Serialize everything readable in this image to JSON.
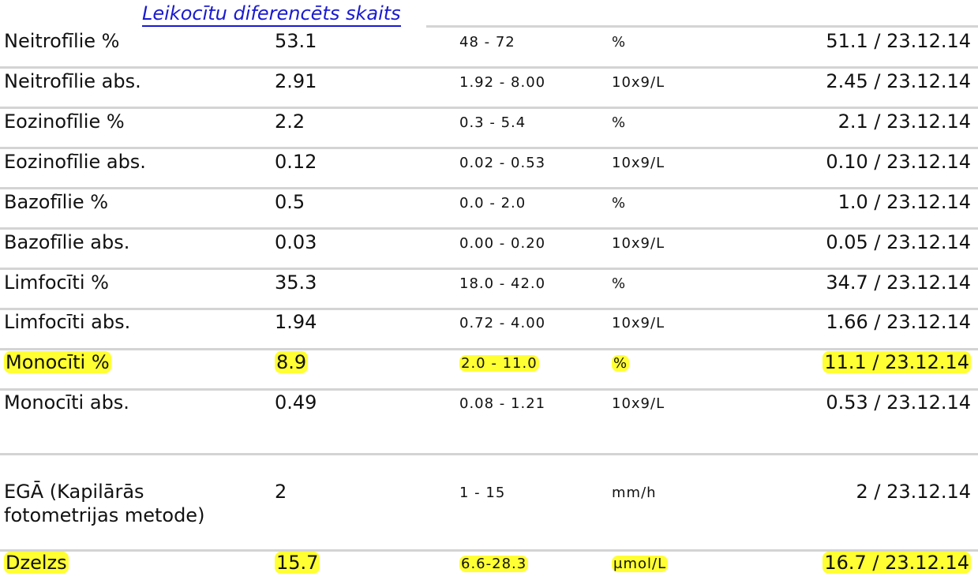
{
  "section_title": "Leikocītu diferencēts skaits",
  "rows": [
    {
      "name": "Neitrofīlie %",
      "value": "53.1",
      "range": "48 - 72",
      "unit": "%",
      "previous": "51.1 / 23.12.14",
      "highlight": false
    },
    {
      "name": "Neitrofīlie abs.",
      "value": "2.91",
      "range": "1.92 - 8.00",
      "unit": "10x9/L",
      "previous": "2.45 / 23.12.14",
      "highlight": false
    },
    {
      "name": "Eozinofīlie %",
      "value": "2.2",
      "range": "0.3 - 5.4",
      "unit": "%",
      "previous": "2.1 / 23.12.14",
      "highlight": false
    },
    {
      "name": "Eozinofīlie abs.",
      "value": "0.12",
      "range": "0.02 - 0.53",
      "unit": "10x9/L",
      "previous": "0.10 / 23.12.14",
      "highlight": false
    },
    {
      "name": "Bazofīlie %",
      "value": "0.5",
      "range": "0.0 - 2.0",
      "unit": "%",
      "previous": "1.0 / 23.12.14",
      "highlight": false
    },
    {
      "name": "Bazofīlie abs.",
      "value": "0.03",
      "range": "0.00 - 0.20",
      "unit": "10x9/L",
      "previous": "0.05 / 23.12.14",
      "highlight": false
    },
    {
      "name": "Limfocīti %",
      "value": "35.3",
      "range": "18.0 - 42.0",
      "unit": "%",
      "previous": "34.7 / 23.12.14",
      "highlight": false
    },
    {
      "name": "Limfocīti abs.",
      "value": "1.94",
      "range": "0.72 - 4.00",
      "unit": "10x9/L",
      "previous": "1.66 / 23.12.14",
      "highlight": false
    },
    {
      "name": "Monocīti %",
      "value": "8.9",
      "range": "2.0 - 11.0",
      "unit": "%",
      "previous": "11.1 / 23.12.14",
      "highlight": true
    },
    {
      "name": "Monocīti abs.",
      "value": "0.49",
      "range": "0.08 - 1.21",
      "unit": "10x9/L",
      "previous": "0.53 / 23.12.14",
      "highlight": false
    },
    {
      "name": "EGĀ (Kapilārās\nfotometrijas  metode)",
      "value": "2",
      "range": "1 - 15",
      "unit": "mm/h",
      "previous": "2 / 23.12.14",
      "highlight": false
    },
    {
      "name": "Dzelzs",
      "value": "15.7",
      "range": "6.6-28.3",
      "unit": "μmol/L",
      "previous": "16.7 / 23.12.14",
      "highlight": true
    }
  ]
}
